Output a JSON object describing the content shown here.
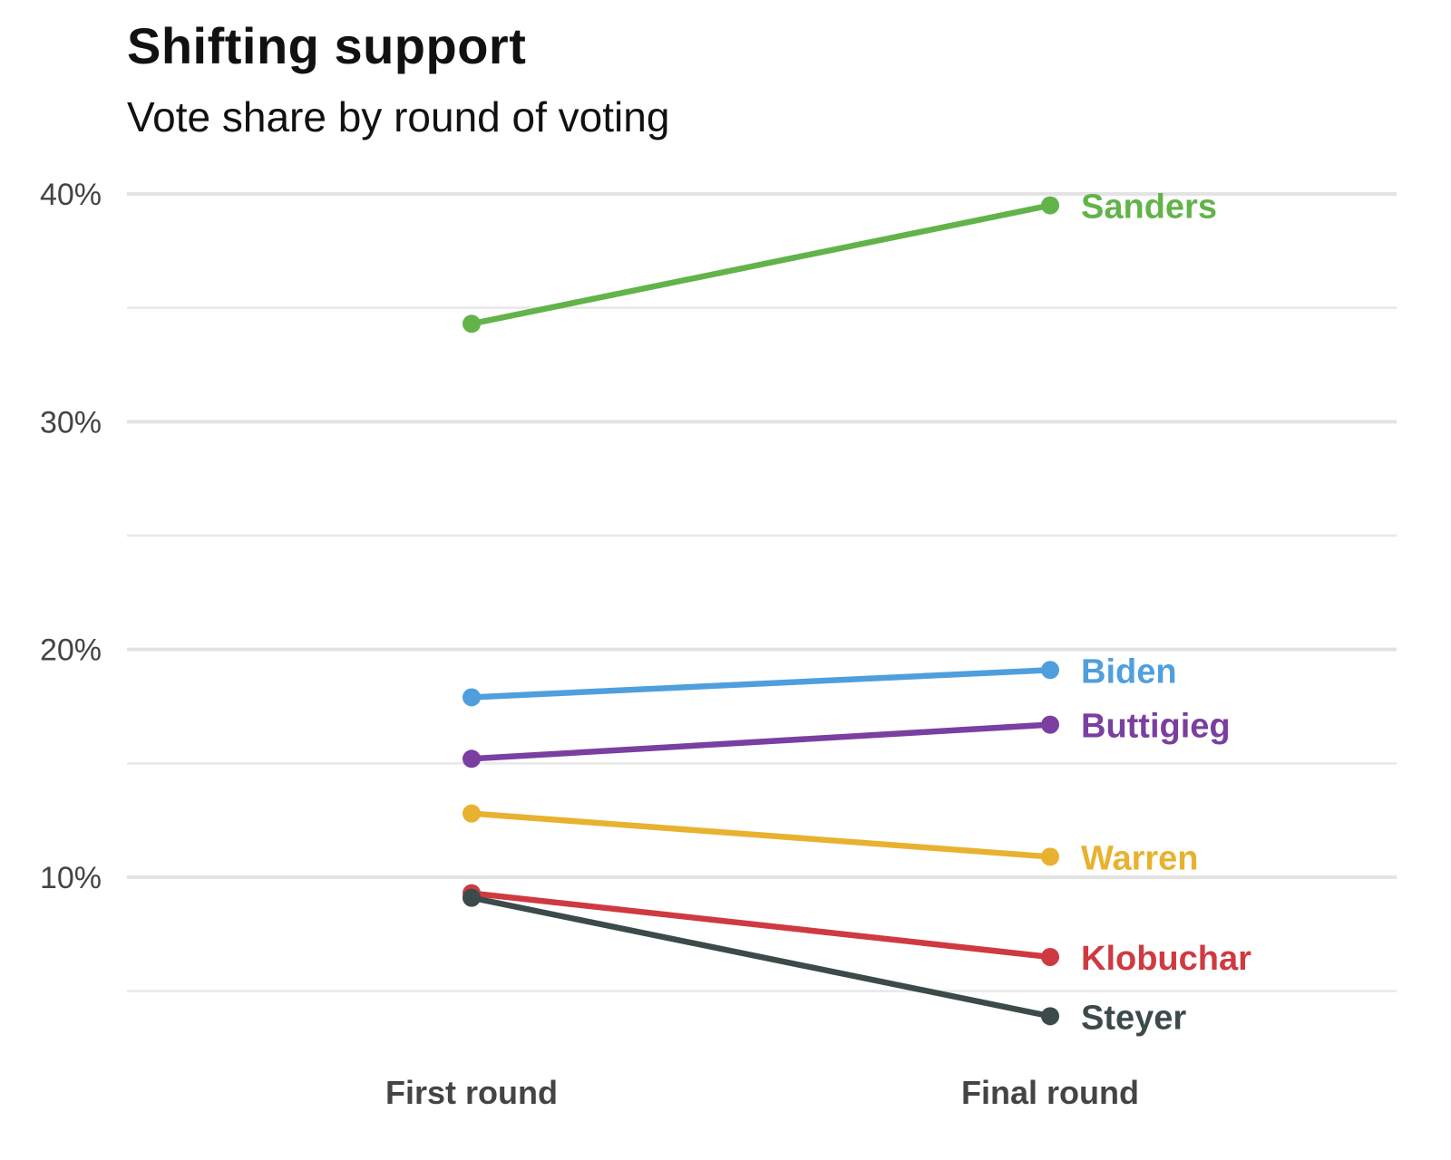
{
  "chart_data": {
    "type": "line",
    "title": "Shifting support",
    "subtitle": "Vote share by round of voting",
    "categories": [
      "First round",
      "Final round"
    ],
    "xlabel": "",
    "ylabel": "",
    "ylim": [
      3,
      42
    ],
    "yticks": [
      10,
      20,
      30,
      40
    ],
    "ytick_labels": [
      "10%",
      "20%",
      "30%",
      "40%"
    ],
    "minor_gridlines": [
      5,
      15,
      25,
      35
    ],
    "grid": true,
    "legend": "direct labels at right end of lines",
    "series": [
      {
        "name": "Sanders",
        "values": [
          34.3,
          39.5
        ],
        "color": "#62b34a"
      },
      {
        "name": "Biden",
        "values": [
          17.9,
          19.1
        ],
        "color": "#4f9fdd"
      },
      {
        "name": "Buttigieg",
        "values": [
          15.2,
          16.7
        ],
        "color": "#7a3fa0"
      },
      {
        "name": "Warren",
        "values": [
          12.8,
          10.9
        ],
        "color": "#e8b230"
      },
      {
        "name": "Klobuchar",
        "values": [
          9.3,
          6.5
        ],
        "color": "#cf3a41"
      },
      {
        "name": "Steyer",
        "values": [
          9.1,
          3.9
        ],
        "color": "#3c4a4a"
      }
    ]
  }
}
